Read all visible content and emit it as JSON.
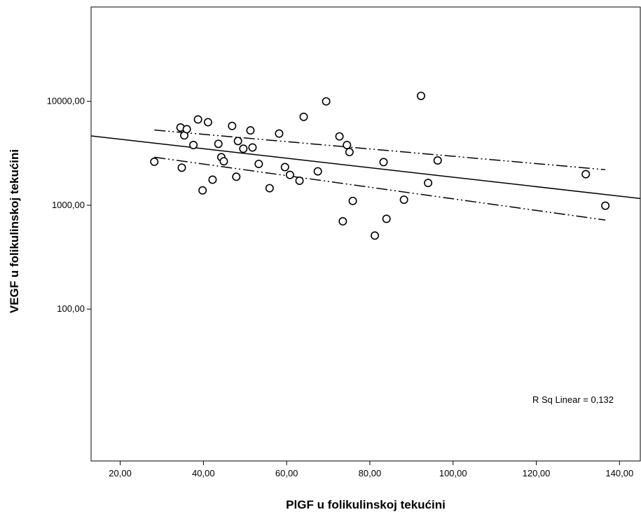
{
  "chart_data": {
    "type": "scatter",
    "title": "",
    "xlabel": "PlGF u folikulinskoj tekućini",
    "ylabel": "VEGF u folikulinskoj tekućini",
    "xlim": [
      13,
      145
    ],
    "ylim": [
      3.45,
      81000
    ],
    "yscale": "log",
    "grid": false,
    "x_ticks": [
      20,
      40,
      60,
      80,
      100,
      120,
      140
    ],
    "x_tick_labels": [
      "20,00",
      "40,00",
      "60,00",
      "80,00",
      "100,00",
      "120,00",
      "140,00"
    ],
    "y_ticks": [
      100,
      1000,
      10000
    ],
    "y_tick_labels": [
      "100,00",
      "1000,00",
      "10000,00"
    ],
    "annotation": "R Sq Linear = 0,132",
    "points": [
      {
        "x": 28.2,
        "y": 2620
      },
      {
        "x": 34.5,
        "y": 5600
      },
      {
        "x": 34.8,
        "y": 2300
      },
      {
        "x": 35.4,
        "y": 4700
      },
      {
        "x": 36.0,
        "y": 5400
      },
      {
        "x": 37.6,
        "y": 3800
      },
      {
        "x": 38.7,
        "y": 6700
      },
      {
        "x": 39.8,
        "y": 1390
      },
      {
        "x": 41.1,
        "y": 6300
      },
      {
        "x": 42.2,
        "y": 1760
      },
      {
        "x": 43.6,
        "y": 3900
      },
      {
        "x": 44.3,
        "y": 2900
      },
      {
        "x": 44.9,
        "y": 2650
      },
      {
        "x": 46.9,
        "y": 5800
      },
      {
        "x": 47.9,
        "y": 1880
      },
      {
        "x": 48.3,
        "y": 4150
      },
      {
        "x": 49.6,
        "y": 3500
      },
      {
        "x": 51.3,
        "y": 5250
      },
      {
        "x": 51.8,
        "y": 3600
      },
      {
        "x": 53.3,
        "y": 2500
      },
      {
        "x": 55.9,
        "y": 1460
      },
      {
        "x": 58.2,
        "y": 4900
      },
      {
        "x": 59.6,
        "y": 2330
      },
      {
        "x": 60.8,
        "y": 1960
      },
      {
        "x": 63.1,
        "y": 1720
      },
      {
        "x": 64.1,
        "y": 7100
      },
      {
        "x": 67.5,
        "y": 2120
      },
      {
        "x": 69.5,
        "y": 10000
      },
      {
        "x": 72.7,
        "y": 4600
      },
      {
        "x": 73.5,
        "y": 700
      },
      {
        "x": 74.5,
        "y": 3800
      },
      {
        "x": 75.1,
        "y": 3250
      },
      {
        "x": 75.9,
        "y": 1100
      },
      {
        "x": 81.2,
        "y": 510
      },
      {
        "x": 83.3,
        "y": 2600
      },
      {
        "x": 84.0,
        "y": 740
      },
      {
        "x": 88.2,
        "y": 1130
      },
      {
        "x": 92.3,
        "y": 11300
      },
      {
        "x": 94.0,
        "y": 1640
      },
      {
        "x": 96.3,
        "y": 2700
      },
      {
        "x": 131.9,
        "y": 1990
      },
      {
        "x": 136.6,
        "y": 990
      }
    ],
    "fit_line": {
      "x": [
        13,
        145
      ],
      "y": [
        4650,
        1160
      ]
    },
    "ci_upper": {
      "x": [
        28.2,
        136.6
      ],
      "y": [
        5300,
        2200
      ]
    },
    "ci_lower": {
      "x": [
        28.2,
        136.6
      ],
      "y": [
        2900,
        720
      ]
    }
  }
}
